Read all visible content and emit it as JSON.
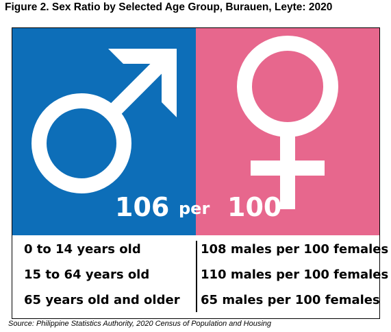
{
  "title": "Figure 2. Sex Ratio by Selected Age Group, Burauen, Leyte: 2020",
  "colors": {
    "male_panel": "#0d6eb8",
    "female_panel": "#e7678d",
    "symbol": "#ffffff"
  },
  "icons": {
    "male": "male-symbol-icon",
    "female": "female-symbol-icon"
  },
  "ratio": {
    "males": "106",
    "per": "per",
    "females": "100"
  },
  "rows": [
    {
      "age_group": "0 to 14 years old",
      "ratio": "108 males per 100 females"
    },
    {
      "age_group": "15 to 64 years old",
      "ratio": "110 males per 100 females"
    },
    {
      "age_group": "65 years old and older",
      "ratio": "65 males per 100 females"
    }
  ],
  "source": "Source: Philippine Statistics Authority, 2020 Census of Population and Housing"
}
